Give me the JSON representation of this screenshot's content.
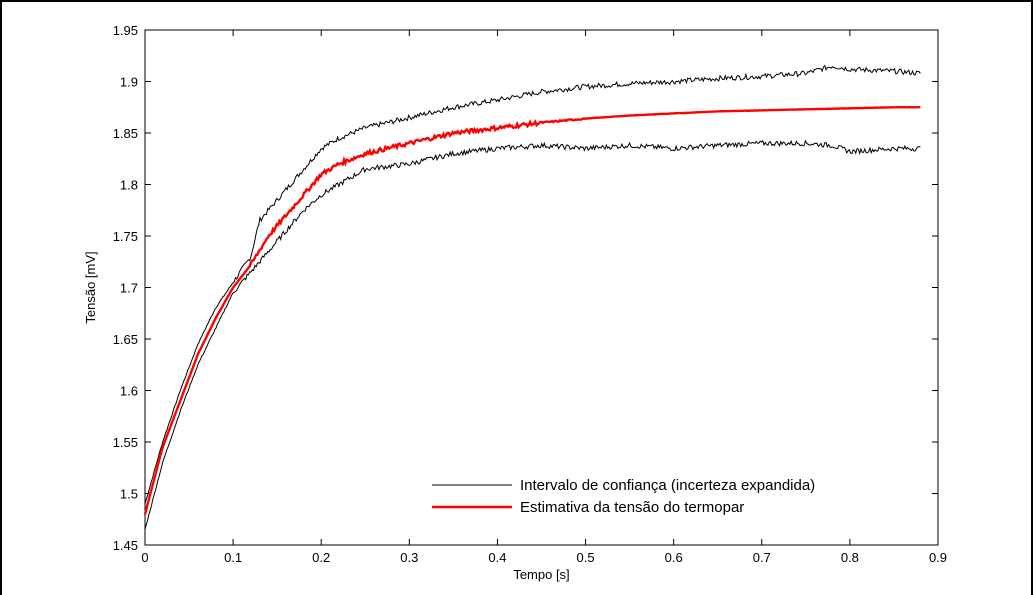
{
  "chart_data": {
    "type": "line",
    "title": "",
    "xlabel": "Tempo [s]",
    "ylabel": "Tensão  [mV]",
    "xlim": [
      0,
      0.9
    ],
    "ylim": [
      1.45,
      1.95
    ],
    "xticks": [
      0,
      0.1,
      0.2,
      0.3,
      0.4,
      0.5,
      0.6,
      0.7,
      0.8,
      0.9
    ],
    "xtick_labels": [
      "0",
      "0.1",
      "0.2",
      "0.3",
      "0.4",
      "0.5",
      "0.6",
      "0.7",
      "0.8",
      "0.9"
    ],
    "yticks": [
      1.45,
      1.5,
      1.55,
      1.6,
      1.65,
      1.7,
      1.75,
      1.8,
      1.85,
      1.9,
      1.95
    ],
    "ytick_labels": [
      "1.45",
      "1.5",
      "1.55",
      "1.6",
      "1.65",
      "1.7",
      "1.75",
      "1.8",
      "1.85",
      "1.9",
      "1.95"
    ],
    "grid": false,
    "legend_position": "bottom-right",
    "colors": {
      "interval": "#000000",
      "estimate": "#ff0000"
    },
    "series": [
      {
        "name": "Intervalo de confiança (incerteza expandida)",
        "role": "upper",
        "x": [
          0,
          0.02,
          0.04,
          0.06,
          0.08,
          0.1,
          0.12,
          0.13,
          0.14,
          0.16,
          0.18,
          0.2,
          0.22,
          0.25,
          0.3,
          0.35,
          0.4,
          0.45,
          0.5,
          0.55,
          0.6,
          0.65,
          0.7,
          0.75,
          0.78,
          0.8,
          0.85,
          0.88
        ],
        "y": [
          1.49,
          1.55,
          1.6,
          1.645,
          1.68,
          1.705,
          1.73,
          1.765,
          1.775,
          1.795,
          1.815,
          1.835,
          1.845,
          1.855,
          1.865,
          1.875,
          1.882,
          1.89,
          1.895,
          1.898,
          1.9,
          1.903,
          1.905,
          1.908,
          1.915,
          1.912,
          1.91,
          1.908
        ]
      },
      {
        "name": "",
        "role": "lower",
        "x": [
          0,
          0.02,
          0.04,
          0.06,
          0.08,
          0.1,
          0.12,
          0.14,
          0.16,
          0.18,
          0.2,
          0.22,
          0.25,
          0.3,
          0.35,
          0.4,
          0.45,
          0.5,
          0.55,
          0.6,
          0.65,
          0.7,
          0.75,
          0.78,
          0.8,
          0.85,
          0.88
        ],
        "y": [
          1.465,
          1.53,
          1.58,
          1.625,
          1.66,
          1.695,
          1.715,
          1.735,
          1.755,
          1.775,
          1.79,
          1.8,
          1.815,
          1.82,
          1.83,
          1.835,
          1.838,
          1.835,
          1.838,
          1.835,
          1.838,
          1.84,
          1.84,
          1.838,
          1.832,
          1.835,
          1.835
        ]
      },
      {
        "name": "Estimativa da tensão do termopar",
        "role": "estimate",
        "x": [
          0,
          0.02,
          0.04,
          0.06,
          0.08,
          0.1,
          0.12,
          0.14,
          0.16,
          0.18,
          0.2,
          0.22,
          0.25,
          0.3,
          0.35,
          0.4,
          0.45,
          0.5,
          0.55,
          0.6,
          0.65,
          0.7,
          0.75,
          0.8,
          0.85,
          0.88
        ],
        "y": [
          1.48,
          1.545,
          1.59,
          1.635,
          1.67,
          1.7,
          1.722,
          1.75,
          1.77,
          1.79,
          1.81,
          1.82,
          1.83,
          1.84,
          1.85,
          1.855,
          1.86,
          1.864,
          1.867,
          1.869,
          1.871,
          1.872,
          1.873,
          1.874,
          1.875,
          1.875
        ]
      }
    ],
    "legend": [
      {
        "label": "Intervalo de confiança (incerteza expandida)",
        "color": "#000000"
      },
      {
        "label": "Estimativa da tensão do termopar",
        "color": "#ff0000"
      }
    ]
  }
}
